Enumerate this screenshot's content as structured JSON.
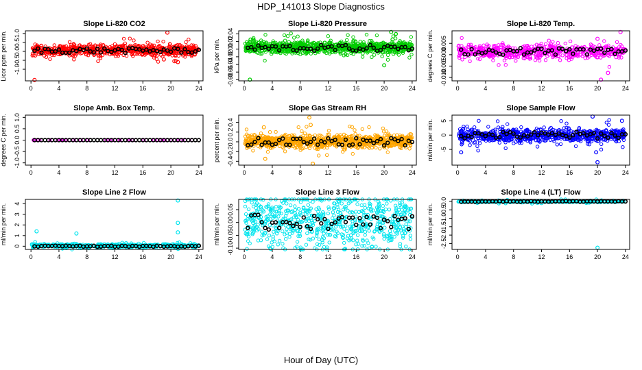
{
  "title": "HDP_141013  Slope Diagnostics",
  "xlabel": "Hour of Day (UTC)",
  "chart_data": [
    {
      "type": "scatter",
      "title": "Slope Li-820 CO2",
      "ylabel": "Licor ppm per min.",
      "ylim": [
        -1.65,
        1.15
      ],
      "yticks": [
        -1.0,
        -0.5,
        0.0,
        0.5,
        1.0
      ],
      "yticklabels": [
        "-1.0",
        "-0.5",
        "0.0",
        "0.5",
        "1.0"
      ],
      "xlim": [
        -0.8,
        24.6
      ],
      "xticks": [
        0,
        4,
        8,
        12,
        16,
        20,
        24
      ],
      "color": "#ff0000",
      "band": [
        -0.18,
        0.3
      ],
      "hourly_center": 0.05,
      "hourly_amp": 0.14,
      "outliers": [
        [
          0.5,
          -1.6
        ],
        [
          19.5,
          1.05
        ],
        [
          20.5,
          -0.55
        ],
        [
          19.0,
          -0.45
        ],
        [
          21.0,
          -0.6
        ]
      ],
      "n_points": 700
    },
    {
      "type": "scatter",
      "title": "Slope Li-820 Pressure",
      "ylabel": "kPa per min.",
      "ylim": [
        -0.083,
        0.048
      ],
      "yticks": [
        -0.08,
        -0.06,
        -0.04,
        -0.02,
        0.0,
        0.02,
        0.04
      ],
      "yticklabels": [
        "-0.08",
        "-0.06",
        "-0.04",
        "-0.02",
        "0.00",
        "0.02",
        "0.04"
      ],
      "xlim": [
        -0.8,
        24.6
      ],
      "xticks": [
        0,
        4,
        8,
        12,
        16,
        20,
        24
      ],
      "color": "#00cc00",
      "band": [
        -0.008,
        0.018
      ],
      "hourly_center": 0.003,
      "hourly_amp": 0.008,
      "outliers": [
        [
          0.8,
          -0.08
        ],
        [
          21.0,
          0.045
        ],
        [
          20.0,
          -0.042
        ],
        [
          21.2,
          0.025
        ],
        [
          0.9,
          0.025
        ]
      ],
      "n_points": 900
    },
    {
      "type": "scatter",
      "title": "Slope Li-820 Temp.",
      "ylabel": "degrees C per min.",
      "ylim": [
        -0.0115,
        0.0105
      ],
      "yticks": [
        -0.01,
        -0.005,
        0.0,
        0.005
      ],
      "yticklabels": [
        "-0.010",
        "-0.005",
        "0.000",
        "0.005"
      ],
      "xlim": [
        -0.8,
        24.6
      ],
      "xticks": [
        0,
        4,
        8,
        12,
        16,
        20,
        24
      ],
      "color": "#ff00ff",
      "band": [
        -0.001,
        0.004
      ],
      "hourly_center": 0.0015,
      "hourly_amp": 0.0015,
      "outliers": [
        [
          23.3,
          0.01
        ],
        [
          20.5,
          -0.011
        ],
        [
          21.5,
          -0.008
        ],
        [
          20.0,
          0.007
        ]
      ],
      "n_points": 600
    },
    {
      "type": "scatter",
      "title": "Slope Amb. Box Temp.",
      "ylabel": "degrees C per min.",
      "ylim": [
        -1.1,
        1.1
      ],
      "yticks": [
        -1.0,
        -0.5,
        0.0,
        0.5,
        1.0
      ],
      "yticklabels": [
        "-1.0",
        "-0.5",
        "0.0",
        "0.5",
        "1.0"
      ],
      "xlim": [
        -0.8,
        24.6
      ],
      "xticks": [
        0,
        4,
        8,
        12,
        16,
        20,
        24
      ],
      "color": "#ff00ff",
      "band": [
        0.0,
        0.0
      ],
      "hourly_center": 0.0,
      "hourly_amp": 0.0,
      "outliers": [],
      "n_points": 40
    },
    {
      "type": "scatter",
      "title": "Slope Gas Stream RH",
      "ylabel": "percent per min.",
      "ylim": [
        -0.48,
        0.55
      ],
      "yticks": [
        -0.4,
        -0.2,
        0.0,
        0.2,
        0.4
      ],
      "yticklabels": [
        "-0.4",
        "-0.2",
        "0.0",
        "0.2",
        "0.4"
      ],
      "xlim": [
        -0.8,
        24.6
      ],
      "xticks": [
        0,
        4,
        8,
        12,
        16,
        20,
        24
      ],
      "color": "#ffa500",
      "band": [
        -0.1,
        0.12
      ],
      "hourly_center": 0.0,
      "hourly_amp": 0.08,
      "outliers": [
        [
          9.3,
          0.5
        ],
        [
          9.8,
          -0.45
        ],
        [
          3.0,
          -0.35
        ],
        [
          2.8,
          0.3
        ],
        [
          9.5,
          0.35
        ]
      ],
      "n_points": 900
    },
    {
      "type": "scatter",
      "title": "Slope Sample Flow",
      "ylabel": "ml/min per min.",
      "ylim": [
        -10.5,
        7.0
      ],
      "yticks": [
        -5,
        0,
        5
      ],
      "yticklabels": [
        "-5",
        "0",
        "5"
      ],
      "xlim": [
        -0.8,
        24.6
      ],
      "xticks": [
        0,
        4,
        8,
        12,
        16,
        20,
        24
      ],
      "color": "#0000ff",
      "band": [
        -2.0,
        2.0
      ],
      "hourly_center": 0.0,
      "hourly_amp": 1.2,
      "outliers": [
        [
          20.0,
          -9.5
        ],
        [
          19.3,
          6.5
        ],
        [
          0.5,
          -6.0
        ],
        [
          23.5,
          5.0
        ],
        [
          19.8,
          -6.0
        ]
      ],
      "n_points": 700
    },
    {
      "type": "scatter",
      "title": "Slope Line 2 Flow",
      "ylabel": "ml/min per min.",
      "ylim": [
        -0.3,
        4.4
      ],
      "yticks": [
        0,
        1,
        2,
        3,
        4
      ],
      "yticklabels": [
        "0",
        "1",
        "2",
        "3",
        "4"
      ],
      "xlim": [
        -0.8,
        24.6
      ],
      "xticks": [
        0,
        4,
        8,
        12,
        16,
        20,
        24
      ],
      "color": "#00e5ee",
      "band": [
        -0.1,
        0.2
      ],
      "hourly_center": 0.0,
      "hourly_amp": 0.05,
      "outliers": [
        [
          21.0,
          4.3
        ],
        [
          21.0,
          2.2
        ],
        [
          0.8,
          1.4
        ],
        [
          6.5,
          1.2
        ],
        [
          21.0,
          1.3
        ]
      ],
      "n_points": 500
    },
    {
      "type": "scatter",
      "title": "Slope Line 3 Flow",
      "ylabel": "ml/min per min.",
      "ylim": [
        -0.105,
        0.09
      ],
      "yticks": [
        -0.1,
        -0.05,
        0.0,
        0.05
      ],
      "yticklabels": [
        "-0.10",
        "-0.05",
        "0.00",
        "0.05"
      ],
      "xlim": [
        -0.8,
        24.6
      ],
      "xticks": [
        0,
        4,
        8,
        12,
        16,
        20,
        24
      ],
      "color": "#00e5ee",
      "band": [
        -0.08,
        0.09
      ],
      "hourly_center": 0.0,
      "hourly_amp": 0.03,
      "outliers": [],
      "n_points": 700
    },
    {
      "type": "scatter",
      "title": "Slope Line 4 (LT) Flow",
      "ylabel": "ml/min per min.",
      "ylim": [
        -2.85,
        0.12
      ],
      "yticks": [
        -2.5,
        -2.0,
        -1.5,
        -1.0,
        -0.5,
        0.0
      ],
      "yticklabels": [
        "-2.5",
        "-2.0",
        "-1.5",
        "-1.0",
        "-0.5",
        "0.0"
      ],
      "xlim": [
        -0.8,
        24.6
      ],
      "xticks": [
        0,
        4,
        8,
        12,
        16,
        20,
        24
      ],
      "color": "#00e5ee",
      "band": [
        -0.05,
        0.05
      ],
      "hourly_center": 0.0,
      "hourly_amp": 0.02,
      "outliers": [
        [
          20.0,
          -2.75
        ],
        [
          12.0,
          -0.1
        ],
        [
          0.3,
          0.0
        ]
      ],
      "n_points": 300
    }
  ]
}
